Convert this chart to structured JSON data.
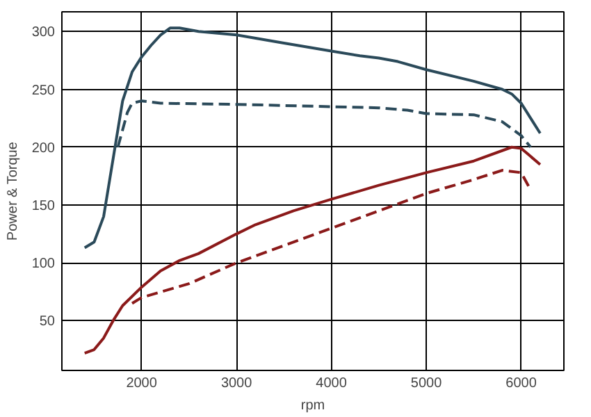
{
  "chart_data": {
    "type": "line",
    "xlabel": "rpm",
    "ylabel": "Power & Torque",
    "xlim": [
      1160,
      6450
    ],
    "ylim": [
      7,
      317
    ],
    "xticks": [
      2000,
      3000,
      4000,
      5000,
      6000
    ],
    "yticks": [
      50,
      100,
      150,
      200,
      250,
      300
    ],
    "grid": true,
    "marker": "none",
    "series": [
      {
        "color": "#2b4a5a",
        "line_style": "solid",
        "x": [
          1400,
          1500,
          1600,
          1700,
          1800,
          1900,
          2000,
          2100,
          2200,
          2300,
          2400,
          2600,
          3000,
          3500,
          4000,
          4300,
          4500,
          4700,
          5000,
          5500,
          5800,
          5900,
          6000,
          6100,
          6200
        ],
        "values": [
          113,
          118,
          140,
          190,
          240,
          265,
          278,
          288,
          297,
          303,
          303,
          300,
          297,
          290,
          283,
          279,
          277,
          274,
          267,
          257,
          250,
          246,
          238,
          225,
          212
        ]
      },
      {
        "color": "#2b4a5a",
        "line_style": "dashed",
        "x": [
          1750,
          1850,
          1900,
          2000,
          2200,
          3000,
          4000,
          4500,
          4800,
          5000,
          5500,
          5800,
          6000,
          6100
        ],
        "values": [
          200,
          230,
          238,
          240,
          238,
          237,
          235,
          234,
          232,
          229,
          228,
          222,
          210,
          200
        ]
      },
      {
        "color": "#8b1a1a",
        "line_style": "solid",
        "x": [
          1400,
          1500,
          1600,
          1700,
          1800,
          2000,
          2200,
          2400,
          2600,
          3000,
          3200,
          3600,
          4000,
          4500,
          5000,
          5500,
          5900,
          6000,
          6100,
          6200
        ],
        "values": [
          22,
          25,
          35,
          50,
          63,
          79,
          93,
          102,
          108,
          125,
          133,
          145,
          155,
          167,
          178,
          188,
          200,
          199,
          192,
          185
        ]
      },
      {
        "color": "#8b1a1a",
        "line_style": "dashed",
        "x": [
          1900,
          2000,
          2500,
          3000,
          3500,
          4000,
          4500,
          5000,
          5500,
          5800,
          6000,
          6100
        ],
        "values": [
          65,
          70,
          82,
          100,
          115,
          130,
          145,
          160,
          172,
          180,
          178,
          163
        ]
      }
    ]
  }
}
